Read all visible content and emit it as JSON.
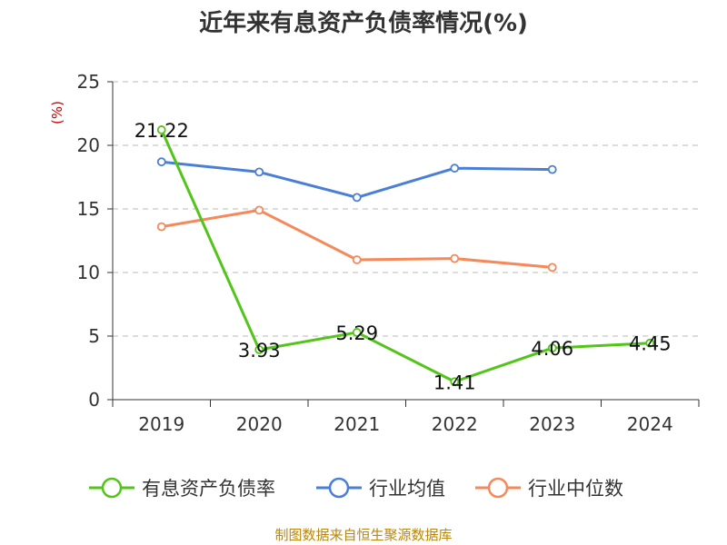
{
  "chart_data": {
    "type": "line",
    "title": "近年来有息资产负债率情况(%)",
    "ylabel": "(%)",
    "categories": [
      "2019",
      "2020",
      "2021",
      "2022",
      "2023",
      "2024"
    ],
    "yticks": [
      "0",
      "5",
      "10",
      "15",
      "20",
      "25"
    ],
    "ylim": [
      0,
      25
    ],
    "grid": true,
    "legend_position": "bottom",
    "series": [
      {
        "name": "有息资产负债率",
        "color": "#52c41a",
        "values": [
          21.22,
          3.93,
          5.29,
          1.41,
          4.06,
          4.45
        ],
        "labels": [
          "21.22",
          "3.93",
          "5.29",
          "1.41",
          "4.06",
          "4.45"
        ]
      },
      {
        "name": "行业均值",
        "color": "#4a7fd6",
        "values": [
          18.7,
          17.9,
          15.9,
          18.2,
          18.1,
          null
        ]
      },
      {
        "name": "行业中位数",
        "color": "#f5895a",
        "values": [
          13.6,
          14.9,
          11.0,
          11.1,
          10.4,
          null
        ]
      }
    ]
  },
  "source": "制图数据来自恒生聚源数据库"
}
